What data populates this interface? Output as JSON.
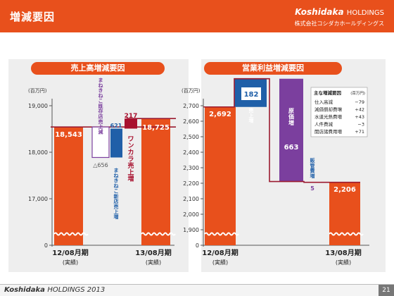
{
  "header": {
    "title": "増減要因",
    "brand": "Koshidaka",
    "brand_suffix": "HOLDINGS",
    "company": "株式会社コシダカホールディングス"
  },
  "footer": {
    "brand": "Koshidaka",
    "brand_rest": "HOLDINGS 2013",
    "page": "21"
  },
  "colors": {
    "orange": "#e8501c",
    "blue": "#1f5fa8",
    "crimson": "#a8102e",
    "purple": "#7b3f9e",
    "line": "#9b1b30"
  },
  "chart_data": [
    {
      "type": "bar",
      "title": "売上高増減要因",
      "unit": "(百万円)",
      "ylim": [
        16000,
        19500
      ],
      "ticks": [
        "19,000",
        "18,000",
        "17,000",
        "0"
      ],
      "tick_values": [
        19000,
        18000,
        17000,
        16000
      ],
      "start": {
        "label": "12/08月期",
        "sub": "(実績)",
        "value": 18543,
        "value_label": "18,543"
      },
      "end": {
        "label": "13/08月期",
        "sub": "(実績)",
        "value": 18725,
        "value_label": "18,725"
      },
      "steps": [
        {
          "label": "まねきねこ既存店売上減",
          "value": -656,
          "value_label": "△656"
        },
        {
          "label": "まねきねこ新店売上増",
          "value": 621,
          "value_label": "621"
        },
        {
          "label": "ワンカラ売上増",
          "value": 217,
          "value_label": "217"
        }
      ]
    },
    {
      "type": "bar",
      "title": "営業利益増減要因",
      "unit": "(百万円)",
      "ylim": [
        1800,
        2770
      ],
      "ticks": [
        "2,700",
        "2,600",
        "2,500",
        "2,400",
        "2,300",
        "2,200",
        "2,100",
        "2,000",
        "1,900",
        "0"
      ],
      "tick_values": [
        2700,
        2600,
        2500,
        2400,
        2300,
        2200,
        2100,
        2000,
        1900,
        1800
      ],
      "start": {
        "label": "12/08月期",
        "sub": "(実績)",
        "value": 2692,
        "value_label": "2,692"
      },
      "end": {
        "label": "13/08月期",
        "sub": "(実績)",
        "value": 2206,
        "value_label": "2,206"
      },
      "steps": [
        {
          "label": "売上増",
          "value": 182,
          "value_label": "182"
        },
        {
          "label": "原価増",
          "value": -663,
          "value_label": "663"
        },
        {
          "label": "販管費増",
          "value": -5,
          "value_label": "5"
        }
      ],
      "breakdown": {
        "title": "主な増減要因",
        "unit": "(百万円)",
        "rows": [
          {
            "label": "仕入高減",
            "value": "−79"
          },
          {
            "label": "減価償却費増",
            "value": "+42"
          },
          {
            "label": "水道光熱費増",
            "value": "+43"
          },
          {
            "label": "人件費減",
            "value": "−3"
          },
          {
            "label": "開店諸費用増",
            "value": "+71"
          }
        ]
      }
    }
  ]
}
